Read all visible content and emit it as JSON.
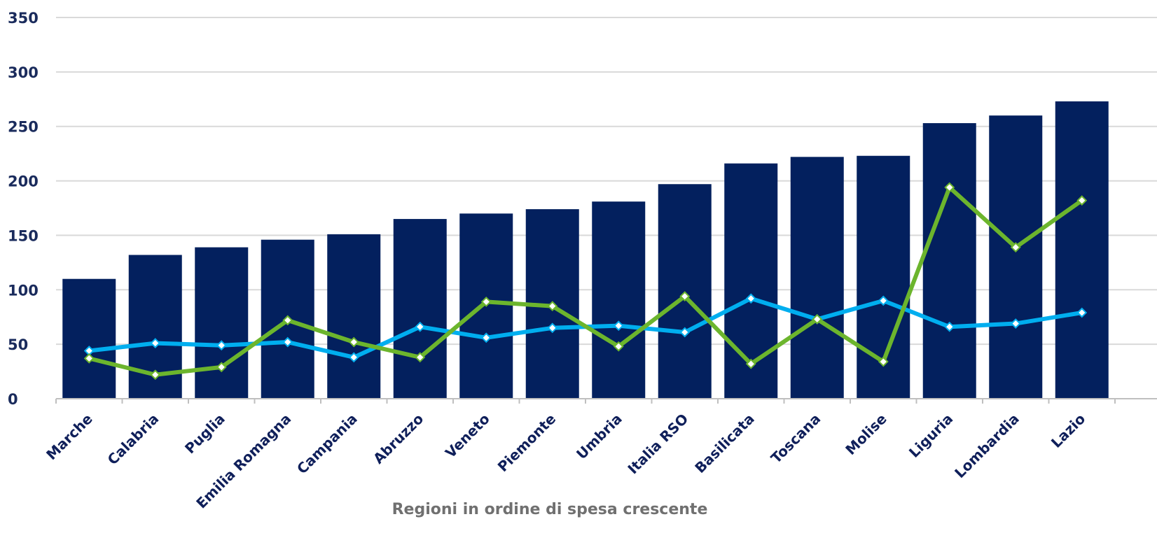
{
  "chart_data": {
    "type": "bar",
    "categories": [
      "Marche",
      "Calabria",
      "Puglia",
      "Emilia Romagna",
      "Campania",
      "Abruzzo",
      "Veneto",
      "Piemonte",
      "Umbria",
      "Italia RSO",
      "Basilicata",
      "Toscana",
      "Molise",
      "Liguria",
      "Lombardia",
      "Lazio"
    ],
    "series": [
      {
        "type": "bar",
        "values": [
          110,
          132,
          139,
          146,
          151,
          165,
          170,
          174,
          181,
          197,
          216,
          222,
          223,
          253,
          260,
          273
        ]
      },
      {
        "type": "line",
        "values": [
          44,
          51,
          49,
          52,
          38,
          66,
          56,
          65,
          67,
          61,
          92,
          73,
          90,
          66,
          69,
          79
        ]
      },
      {
        "type": "line",
        "values": [
          37,
          22,
          29,
          72,
          52,
          38,
          89,
          85,
          48,
          94,
          32,
          73,
          34,
          194,
          139,
          182
        ]
      }
    ],
    "colors": {
      "bar": "#03205e",
      "line_blue": "#00aeef",
      "line_green": "#6cb52d",
      "grid": "#d9d9d9"
    },
    "xlabel": "Regioni in ordine di spesa crescente",
    "ylabel": "",
    "title": "",
    "yticks": [
      0,
      50,
      100,
      150,
      200,
      250,
      300,
      350
    ],
    "ylim": [
      0,
      350
    ],
    "grid": true,
    "legend": "none"
  }
}
